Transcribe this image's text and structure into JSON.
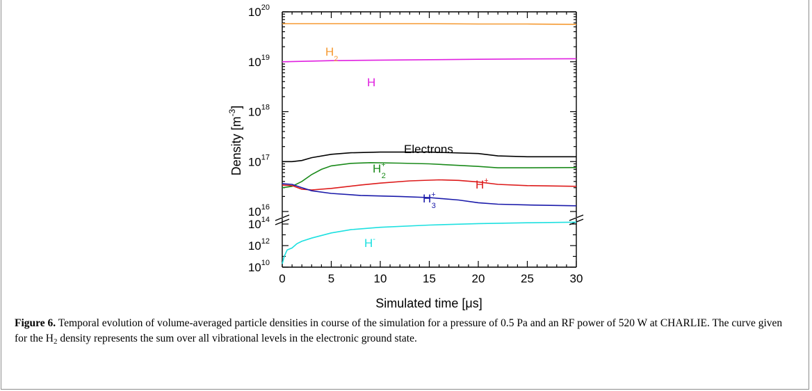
{
  "chart_data": {
    "type": "line",
    "xlabel": "Simulated time [μs]",
    "ylabel": "Density [m",
    "ylabel_exponent": "-3",
    "ylabel_close": "]",
    "xlim": [
      0,
      30
    ],
    "x_ticks": [
      "0",
      "5",
      "10",
      "15",
      "20",
      "25",
      "30"
    ],
    "y_scale": "log (broken axis)",
    "upper_panel_ylim": [
      1e+16,
      1e+20
    ],
    "lower_panel_ylim": [
      10000000000.0,
      100000000000000.0
    ],
    "y_ticks_upper": [
      {
        "base": "10",
        "exp": "20"
      },
      {
        "base": "10",
        "exp": "19"
      },
      {
        "base": "10",
        "exp": "18"
      },
      {
        "base": "10",
        "exp": "17"
      },
      {
        "base": "10",
        "exp": "16"
      }
    ],
    "y_ticks_lower": [
      {
        "base": "10",
        "exp": "14"
      },
      {
        "base": "10",
        "exp": "12"
      },
      {
        "base": "10",
        "exp": "10"
      }
    ],
    "grid": false,
    "series": [
      {
        "name": "H2",
        "label_base": "H",
        "label_sub": "2",
        "label_sup": "",
        "color": "#f59a32",
        "panel": "upper",
        "x": [
          0,
          5,
          10,
          15,
          20,
          25,
          30
        ],
        "y": [
          5.8e+19,
          5.8e+19,
          5.8e+19,
          5.8e+19,
          5.7e+19,
          5.7e+19,
          5.6e+19
        ]
      },
      {
        "name": "H",
        "label_base": "H",
        "label_sub": "",
        "label_sup": "",
        "color": "#e020e0",
        "panel": "upper",
        "x": [
          0,
          5,
          10,
          15,
          20,
          25,
          30
        ],
        "y": [
          1e+19,
          1.05e+19,
          1.08e+19,
          1.1e+19,
          1.12e+19,
          1.14e+19,
          1.15e+19
        ]
      },
      {
        "name": "Electrons",
        "label_base": "Electrons",
        "label_sub": "",
        "label_sup": "",
        "color": "#000000",
        "panel": "upper",
        "x": [
          0,
          1,
          2,
          3,
          5,
          7,
          10,
          15,
          20,
          22,
          25,
          30
        ],
        "y": [
          1e+17,
          1e+17,
          1.05e+17,
          1.2e+17,
          1.4e+17,
          1.5e+17,
          1.55e+17,
          1.55e+17,
          1.45e+17,
          1.3e+17,
          1.25e+17,
          1.25e+17
        ]
      },
      {
        "name": "H2+",
        "label_base": "H",
        "label_sub": "2",
        "label_sup": "+",
        "color": "#1a8a1a",
        "panel": "upper",
        "x": [
          0,
          1,
          2,
          3,
          4,
          5,
          7,
          9,
          12,
          15,
          20,
          22,
          25,
          30
        ],
        "y": [
          3e+16,
          3.2e+16,
          4e+16,
          5.5e+16,
          7e+16,
          8.2e+16,
          9.2e+16,
          9.5e+16,
          9.3e+16,
          9e+16,
          8e+16,
          7.5e+16,
          7.5e+16,
          7.6e+16
        ]
      },
      {
        "name": "H+",
        "label_base": "H",
        "label_sub": "",
        "label_sup": "+",
        "color": "#dd1a1a",
        "panel": "upper",
        "x": [
          0,
          1,
          2,
          3,
          5,
          8,
          10,
          13,
          16,
          18,
          20,
          22,
          25,
          30
        ],
        "y": [
          3.4e+16,
          3.3e+16,
          2.8e+16,
          2.7e+16,
          2.9e+16,
          3.4e+16,
          3.7e+16,
          4.1e+16,
          4.3e+16,
          4.2e+16,
          3.9e+16,
          3.5e+16,
          3.3e+16,
          3.2e+16
        ]
      },
      {
        "name": "H3+",
        "label_base": "H",
        "label_sub": "3",
        "label_sup": "+",
        "color": "#1a1aaa",
        "panel": "upper",
        "x": [
          0,
          1,
          2,
          3,
          5,
          8,
          12,
          15,
          18,
          20,
          22,
          25,
          30
        ],
        "y": [
          3.6e+16,
          3.5e+16,
          3e+16,
          2.6e+16,
          2.3e+16,
          2.1e+16,
          2e+16,
          1.9e+16,
          1.7e+16,
          1.5e+16,
          1.4e+16,
          1.35e+16,
          1.3e+16
        ]
      },
      {
        "name": "H-",
        "label_base": "H",
        "label_sub": "",
        "label_sup": "-",
        "color": "#1de0e0",
        "panel": "lower",
        "x": [
          0,
          0.2,
          0.5,
          1,
          1.5,
          2,
          3,
          5,
          7,
          10,
          15,
          20,
          25,
          30
        ],
        "y": [
          20000000000.0,
          100000000000.0,
          400000000000.0,
          600000000000.0,
          1500000000000.0,
          2500000000000.0,
          5000000000000.0,
          15000000000000.0,
          30000000000000.0,
          50000000000000.0,
          80000000000000.0,
          110000000000000.0,
          130000000000000.0,
          150000000000000.0
        ]
      }
    ]
  },
  "caption": {
    "label": "Figure 6.",
    "text_1": " Temporal evolution of volume-averaged particle densities in course of the simulation for a pressure of 0.5 Pa and an RF power of 520 W at CHARLIE. The curve given for the H",
    "sub": "2",
    "text_2": " density represents the sum over all vibrational levels in the electronic ground state."
  }
}
